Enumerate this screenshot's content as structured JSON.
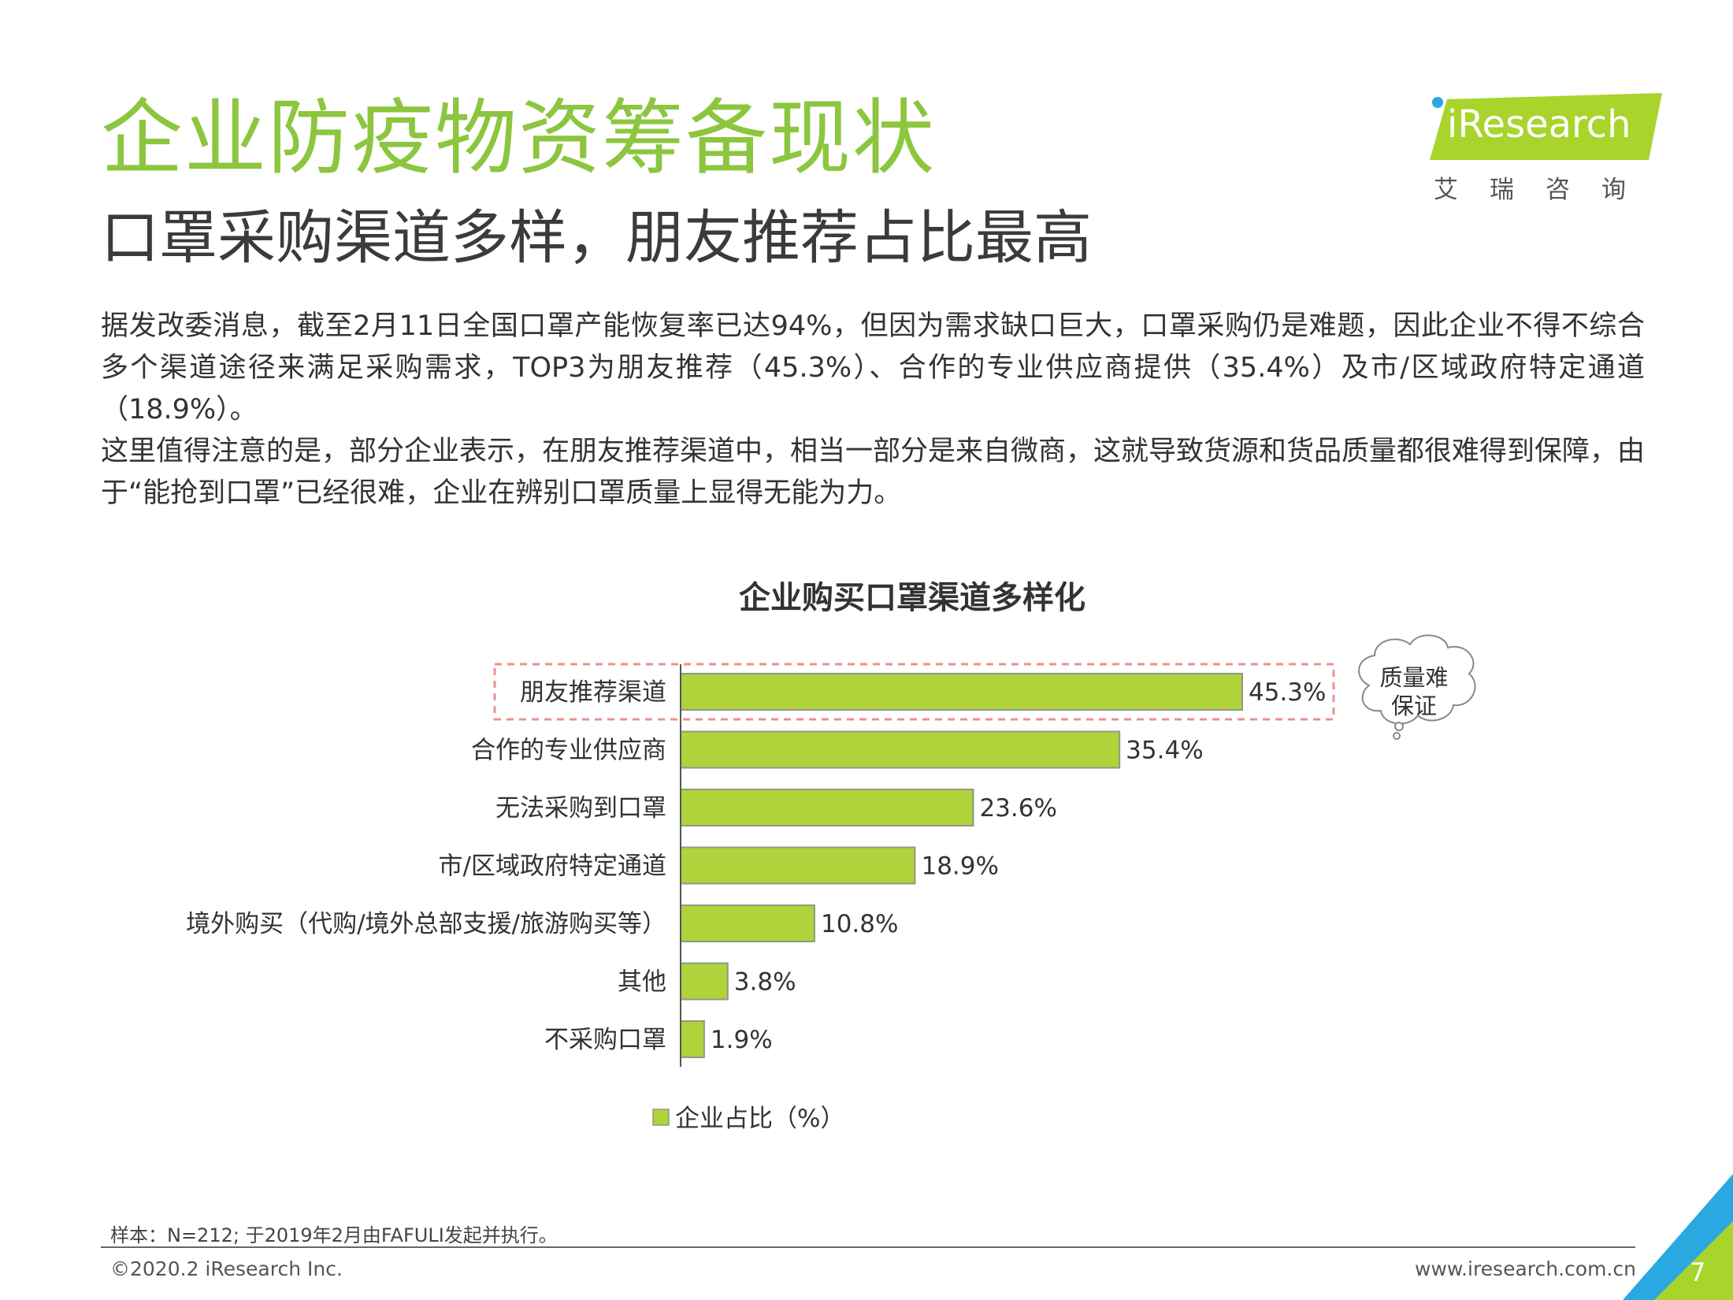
{
  "header": {
    "title": "企业防疫物资筹备现状",
    "subtitle": "口罩采购渠道多样，朋友推荐占比最高",
    "logo_text": "iResearch",
    "logo_cn": "艾瑞咨询"
  },
  "body": {
    "paragraph1": "据发改委消息，截至2月11日全国口罩产能恢复率已达94%，但因为需求缺口巨大，口罩采购仍是难题，因此企业不得不综合多个渠道途径来满足采购需求，TOP3为朋友推荐（45.3%）、合作的专业供应商提供（35.4%）及市/区域政府特定通道（18.9%）。",
    "paragraph2": "这里值得注意的是，部分企业表示，在朋友推荐渠道中，相当一部分是来自微商，这就导致货源和货品质量都很难得到保障，由于“能抢到口罩”已经很难，企业在辨别口罩质量上显得无能为力。"
  },
  "chart_data": {
    "type": "bar",
    "orientation": "horizontal",
    "title": "企业购买口罩渠道多样化",
    "categories": [
      "朋友推荐渠道",
      "合作的专业供应商",
      "无法采购到口罩",
      "市/区域政府特定通道",
      "境外购买（代购/境外总部支援/旅游购买等）",
      "其他",
      "不采购口罩"
    ],
    "series": [
      {
        "name": "企业占比（%）",
        "values": [
          45.3,
          35.4,
          23.6,
          18.9,
          10.8,
          3.8,
          1.9
        ]
      }
    ],
    "value_labels": [
      "45.3%",
      "35.4%",
      "23.6%",
      "18.9%",
      "10.8%",
      "3.8%",
      "1.9%"
    ],
    "xlim": [
      0,
      50
    ],
    "grid": false,
    "legend_position": "bottom",
    "bar_color": "#b0d23a",
    "highlight_category": "朋友推荐渠道",
    "callout": "质量难保证"
  },
  "footer": {
    "sample": "样本：N=212; 于2019年2月由FAFULI发起并执行。",
    "copyright": "©2020.2 iResearch Inc.",
    "website": "www.iresearch.com.cn",
    "page_number": "7"
  },
  "colors": {
    "accent_green": "#8cc63f",
    "logo_green": "#a8d42c",
    "bar_green": "#b0d23a",
    "highlight_dash": "#ef8f8f",
    "corner_blue": "#2aa8e0"
  }
}
